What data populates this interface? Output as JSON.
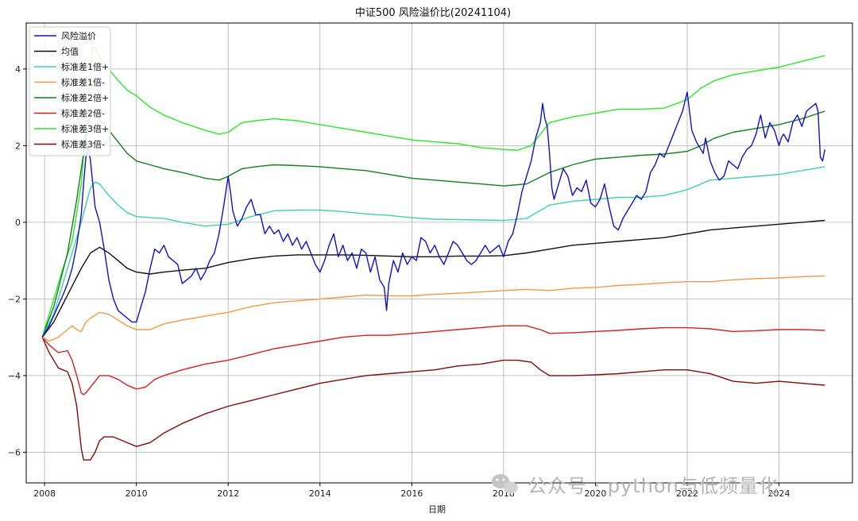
{
  "chart_data": {
    "type": "line",
    "title": "中证500 风险溢价比(20241104)",
    "xlabel": "日期",
    "ylabel": "",
    "xlim": [
      2007.6,
      2025.6
    ],
    "ylim": [
      -6.8,
      5.2
    ],
    "x_ticks": [
      2008,
      2010,
      2012,
      2014,
      2016,
      2018,
      2020,
      2022,
      2024
    ],
    "x_tick_labels": [
      "2008",
      "2010",
      "2012",
      "2014",
      "2016",
      "2018",
      "2020",
      "2022",
      "2024"
    ],
    "y_ticks": [
      -6,
      -4,
      -2,
      0,
      2,
      4
    ],
    "y_tick_labels": [
      "−6",
      "−4",
      "−2",
      "0",
      "2",
      "4"
    ],
    "grid": true,
    "legend_position": "top-left",
    "series": [
      {
        "name": "风险溢价",
        "color": "#1010c8",
        "width": 1.4,
        "x": [
          2007.95,
          2008.1,
          2008.25,
          2008.4,
          2008.5,
          2008.6,
          2008.7,
          2008.8,
          2008.85,
          2008.9,
          2008.95,
          2009.0,
          2009.05,
          2009.1,
          2009.2,
          2009.3,
          2009.4,
          2009.5,
          2009.6,
          2009.7,
          2009.8,
          2009.9,
          2010.0,
          2010.1,
          2010.2,
          2010.3,
          2010.4,
          2010.5,
          2010.6,
          2010.7,
          2010.8,
          2010.9,
          2011.0,
          2011.1,
          2011.2,
          2011.3,
          2011.4,
          2011.5,
          2011.6,
          2011.7,
          2011.8,
          2011.9,
          2012.0,
          2012.05,
          2012.1,
          2012.2,
          2012.3,
          2012.4,
          2012.5,
          2012.6,
          2012.7,
          2012.8,
          2012.9,
          2013.0,
          2013.1,
          2013.2,
          2013.3,
          2013.4,
          2013.5,
          2013.6,
          2013.7,
          2013.8,
          2013.9,
          2014.0,
          2014.1,
          2014.2,
          2014.3,
          2014.4,
          2014.5,
          2014.6,
          2014.7,
          2014.8,
          2014.9,
          2015.0,
          2015.1,
          2015.2,
          2015.3,
          2015.4,
          2015.45,
          2015.5,
          2015.6,
          2015.7,
          2015.8,
          2015.9,
          2016.0,
          2016.1,
          2016.2,
          2016.3,
          2016.4,
          2016.5,
          2016.6,
          2016.7,
          2016.8,
          2016.9,
          2017.0,
          2017.1,
          2017.2,
          2017.3,
          2017.4,
          2017.5,
          2017.6,
          2017.7,
          2017.8,
          2017.9,
          2018.0,
          2018.1,
          2018.2,
          2018.3,
          2018.4,
          2018.5,
          2018.6,
          2018.7,
          2018.8,
          2018.85,
          2018.9,
          2018.95,
          2019.0,
          2019.05,
          2019.1,
          2019.2,
          2019.3,
          2019.4,
          2019.5,
          2019.6,
          2019.7,
          2019.8,
          2019.9,
          2020.0,
          2020.1,
          2020.2,
          2020.3,
          2020.4,
          2020.5,
          2020.6,
          2020.7,
          2020.8,
          2020.9,
          2021.0,
          2021.1,
          2021.2,
          2021.3,
          2021.4,
          2021.5,
          2021.6,
          2021.7,
          2021.8,
          2021.9,
          2022.0,
          2022.1,
          2022.2,
          2022.3,
          2022.35,
          2022.4,
          2022.5,
          2022.6,
          2022.7,
          2022.8,
          2022.9,
          2023.0,
          2023.1,
          2023.2,
          2023.3,
          2023.4,
          2023.5,
          2023.6,
          2023.7,
          2023.8,
          2023.9,
          2024.0,
          2024.05,
          2024.1,
          2024.2,
          2024.3,
          2024.4,
          2024.5,
          2024.6,
          2024.7,
          2024.8,
          2024.85,
          2024.9,
          2024.95,
          2025.0
        ],
        "y": [
          -3.0,
          -2.7,
          -2.3,
          -1.9,
          -1.6,
          -1.2,
          -0.6,
          0.2,
          1.0,
          1.7,
          2.0,
          1.6,
          1.0,
          0.4,
          0.0,
          -0.7,
          -1.5,
          -2.0,
          -2.3,
          -2.4,
          -2.5,
          -2.6,
          -2.6,
          -2.2,
          -1.8,
          -1.2,
          -0.7,
          -0.8,
          -0.6,
          -0.9,
          -1.0,
          -1.1,
          -1.6,
          -1.5,
          -1.4,
          -1.2,
          -1.5,
          -1.3,
          -1.0,
          -0.8,
          -0.3,
          0.4,
          1.2,
          0.8,
          0.3,
          -0.1,
          0.1,
          0.4,
          0.6,
          0.2,
          0.2,
          -0.3,
          -0.1,
          -0.3,
          -0.2,
          -0.5,
          -0.3,
          -0.6,
          -0.4,
          -0.7,
          -0.5,
          -0.8,
          -1.1,
          -1.3,
          -1.0,
          -0.6,
          -0.3,
          -0.9,
          -0.6,
          -1.0,
          -0.8,
          -1.2,
          -0.7,
          -0.8,
          -1.3,
          -0.9,
          -1.5,
          -1.7,
          -2.3,
          -1.6,
          -1.0,
          -1.3,
          -0.8,
          -1.1,
          -0.9,
          -1.0,
          -0.4,
          -0.5,
          -0.8,
          -0.6,
          -0.9,
          -1.1,
          -0.8,
          -0.5,
          -0.6,
          -0.8,
          -1.0,
          -1.1,
          -1.0,
          -0.8,
          -0.6,
          -0.8,
          -0.7,
          -0.6,
          -0.9,
          -0.5,
          -0.3,
          0.2,
          0.8,
          1.2,
          1.6,
          2.2,
          2.6,
          3.1,
          2.7,
          2.5,
          1.8,
          0.9,
          0.6,
          1.0,
          1.4,
          1.2,
          0.7,
          0.9,
          0.8,
          1.1,
          0.5,
          0.4,
          0.6,
          1.0,
          0.4,
          -0.1,
          -0.2,
          0.1,
          0.3,
          0.5,
          0.7,
          0.6,
          0.8,
          1.3,
          1.5,
          1.8,
          1.7,
          2.0,
          2.3,
          2.6,
          2.9,
          3.4,
          2.4,
          2.1,
          1.9,
          1.8,
          2.2,
          1.6,
          1.3,
          1.1,
          1.2,
          1.6,
          1.5,
          1.4,
          1.7,
          1.9,
          2.0,
          2.3,
          2.8,
          2.2,
          2.6,
          2.4,
          2.0,
          2.2,
          2.3,
          2.1,
          2.6,
          2.8,
          2.5,
          2.9,
          3.0,
          3.1,
          2.9,
          1.7,
          1.6,
          1.9
        ]
      },
      {
        "name": "均值",
        "color": "#111111",
        "width": 1.4,
        "x": [
          2007.95,
          2008.2,
          2008.5,
          2008.8,
          2009.0,
          2009.2,
          2009.4,
          2009.6,
          2009.8,
          2010.0,
          2010.3,
          2010.6,
          2011.0,
          2011.5,
          2012.0,
          2012.5,
          2013.0,
          2013.5,
          2014.0,
          2014.5,
          2015.0,
          2015.5,
          2016.0,
          2016.5,
          2017.0,
          2017.5,
          2018.0,
          2018.5,
          2019.0,
          2019.5,
          2020.0,
          2020.5,
          2021.0,
          2021.5,
          2022.0,
          2022.5,
          2023.0,
          2023.5,
          2024.0,
          2024.5,
          2025.0
        ],
        "y": [
          -3.0,
          -2.6,
          -1.9,
          -1.2,
          -0.8,
          -0.65,
          -0.8,
          -1.0,
          -1.2,
          -1.3,
          -1.35,
          -1.3,
          -1.25,
          -1.2,
          -1.05,
          -0.95,
          -0.88,
          -0.85,
          -0.85,
          -0.85,
          -0.86,
          -0.88,
          -0.9,
          -0.9,
          -0.88,
          -0.88,
          -0.87,
          -0.8,
          -0.7,
          -0.6,
          -0.55,
          -0.5,
          -0.45,
          -0.4,
          -0.3,
          -0.2,
          -0.15,
          -0.1,
          -0.05,
          0.0,
          0.05
        ]
      },
      {
        "name": "标准差1倍+",
        "color": "#3fd0b0",
        "width": 1.4,
        "x": [
          2007.95,
          2008.2,
          2008.5,
          2008.8,
          2009.0,
          2009.1,
          2009.2,
          2009.4,
          2009.6,
          2009.8,
          2010.0,
          2010.3,
          2010.6,
          2011.0,
          2011.5,
          2012.0,
          2012.5,
          2013.0,
          2013.5,
          2014.0,
          2014.5,
          2015.0,
          2015.5,
          2016.0,
          2016.5,
          2017.0,
          2017.5,
          2018.0,
          2018.5,
          2019.0,
          2019.5,
          2020.0,
          2020.5,
          2021.0,
          2021.5,
          2022.0,
          2022.5,
          2023.0,
          2023.5,
          2024.0,
          2024.5,
          2025.0
        ],
        "y": [
          -3.0,
          -2.4,
          -1.2,
          0.0,
          0.9,
          1.05,
          1.0,
          0.7,
          0.45,
          0.25,
          0.15,
          0.12,
          0.1,
          0.0,
          -0.1,
          -0.05,
          0.15,
          0.3,
          0.32,
          0.32,
          0.28,
          0.22,
          0.18,
          0.12,
          0.08,
          0.07,
          0.06,
          0.05,
          0.1,
          0.45,
          0.55,
          0.6,
          0.65,
          0.65,
          0.7,
          0.85,
          1.1,
          1.15,
          1.2,
          1.25,
          1.35,
          1.45
        ]
      },
      {
        "name": "标准差1倍-",
        "color": "#f09a48",
        "width": 1.4,
        "x": [
          2007.95,
          2008.1,
          2008.3,
          2008.5,
          2008.6,
          2008.7,
          2008.8,
          2008.9,
          2009.0,
          2009.2,
          2009.4,
          2009.6,
          2009.8,
          2010.0,
          2010.3,
          2010.6,
          2011.0,
          2011.5,
          2012.0,
          2012.5,
          2013.0,
          2013.5,
          2014.0,
          2014.5,
          2015.0,
          2015.5,
          2016.0,
          2016.5,
          2017.0,
          2017.5,
          2018.0,
          2018.5,
          2019.0,
          2019.5,
          2020.0,
          2020.5,
          2021.0,
          2021.5,
          2022.0,
          2022.5,
          2023.0,
          2023.5,
          2024.0,
          2024.5,
          2025.0
        ],
        "y": [
          -3.0,
          -3.1,
          -3.0,
          -2.8,
          -2.7,
          -2.8,
          -2.85,
          -2.6,
          -2.5,
          -2.35,
          -2.4,
          -2.55,
          -2.7,
          -2.8,
          -2.8,
          -2.65,
          -2.55,
          -2.45,
          -2.35,
          -2.2,
          -2.1,
          -2.05,
          -2.0,
          -1.95,
          -1.9,
          -1.92,
          -1.92,
          -1.88,
          -1.85,
          -1.82,
          -1.78,
          -1.75,
          -1.78,
          -1.72,
          -1.7,
          -1.65,
          -1.62,
          -1.58,
          -1.55,
          -1.55,
          -1.5,
          -1.47,
          -1.45,
          -1.42,
          -1.4
        ]
      },
      {
        "name": "标准差2倍+",
        "color": "#157f1f",
        "width": 1.4,
        "x": [
          2007.95,
          2008.2,
          2008.5,
          2008.7,
          2008.9,
          2009.0,
          2009.1,
          2009.2,
          2009.4,
          2009.6,
          2009.8,
          2010.0,
          2010.3,
          2010.6,
          2011.0,
          2011.5,
          2011.8,
          2012.0,
          2012.3,
          2012.6,
          2013.0,
          2013.5,
          2014.0,
          2014.5,
          2015.0,
          2015.5,
          2016.0,
          2016.5,
          2017.0,
          2017.5,
          2018.0,
          2018.5,
          2019.0,
          2019.5,
          2020.0,
          2020.5,
          2021.0,
          2021.5,
          2022.0,
          2022.3,
          2022.6,
          2023.0,
          2023.5,
          2024.0,
          2024.5,
          2025.0
        ],
        "y": [
          -3.0,
          -2.2,
          -0.8,
          0.6,
          2.2,
          2.8,
          2.85,
          2.7,
          2.4,
          2.1,
          1.8,
          1.6,
          1.5,
          1.4,
          1.3,
          1.15,
          1.1,
          1.2,
          1.4,
          1.45,
          1.5,
          1.48,
          1.45,
          1.4,
          1.35,
          1.25,
          1.15,
          1.1,
          1.05,
          1.0,
          0.95,
          1.0,
          1.3,
          1.5,
          1.65,
          1.7,
          1.75,
          1.78,
          1.85,
          2.0,
          2.2,
          2.35,
          2.45,
          2.55,
          2.7,
          2.9
        ]
      },
      {
        "name": "标准差2倍-",
        "color": "#d42020",
        "width": 1.4,
        "x": [
          2007.95,
          2008.1,
          2008.3,
          2008.5,
          2008.6,
          2008.7,
          2008.8,
          2008.85,
          2008.9,
          2009.0,
          2009.2,
          2009.4,
          2009.6,
          2009.8,
          2010.0,
          2010.2,
          2010.4,
          2010.6,
          2011.0,
          2011.5,
          2012.0,
          2012.5,
          2013.0,
          2013.5,
          2014.0,
          2014.5,
          2015.0,
          2015.5,
          2016.0,
          2016.5,
          2017.0,
          2017.5,
          2018.0,
          2018.5,
          2018.8,
          2019.0,
          2019.5,
          2020.0,
          2020.5,
          2021.0,
          2021.5,
          2022.0,
          2022.5,
          2023.0,
          2023.5,
          2024.0,
          2024.5,
          2025.0
        ],
        "y": [
          -3.0,
          -3.2,
          -3.4,
          -3.35,
          -3.6,
          -4.0,
          -4.45,
          -4.5,
          -4.45,
          -4.3,
          -4.0,
          -4.0,
          -4.1,
          -4.25,
          -4.35,
          -4.3,
          -4.1,
          -4.0,
          -3.85,
          -3.7,
          -3.6,
          -3.45,
          -3.3,
          -3.2,
          -3.1,
          -3.0,
          -2.95,
          -2.95,
          -2.9,
          -2.85,
          -2.8,
          -2.75,
          -2.7,
          -2.7,
          -2.8,
          -2.9,
          -2.88,
          -2.85,
          -2.82,
          -2.78,
          -2.75,
          -2.75,
          -2.78,
          -2.85,
          -2.83,
          -2.8,
          -2.8,
          -2.82
        ]
      },
      {
        "name": "标准差3倍+",
        "color": "#2ee52e",
        "width": 1.4,
        "x": [
          2007.95,
          2008.2,
          2008.4,
          2008.6,
          2008.8,
          2008.9,
          2009.0,
          2009.05,
          2009.1,
          2009.2,
          2009.4,
          2009.6,
          2009.8,
          2010.0,
          2010.3,
          2010.6,
          2011.0,
          2011.5,
          2011.8,
          2012.0,
          2012.3,
          2012.6,
          2013.0,
          2013.5,
          2014.0,
          2014.5,
          2015.0,
          2015.5,
          2016.0,
          2016.5,
          2017.0,
          2017.5,
          2018.0,
          2018.3,
          2018.6,
          2019.0,
          2019.5,
          2020.0,
          2020.5,
          2021.0,
          2021.5,
          2022.0,
          2022.3,
          2022.6,
          2023.0,
          2023.5,
          2024.0,
          2024.5,
          2025.0
        ],
        "y": [
          -3.0,
          -2.0,
          -1.2,
          -0.5,
          1.0,
          2.5,
          3.9,
          4.6,
          4.55,
          4.3,
          4.0,
          3.7,
          3.45,
          3.3,
          3.0,
          2.8,
          2.6,
          2.4,
          2.3,
          2.35,
          2.6,
          2.65,
          2.7,
          2.65,
          2.55,
          2.45,
          2.35,
          2.25,
          2.15,
          2.1,
          2.05,
          1.95,
          1.9,
          1.88,
          2.0,
          2.6,
          2.75,
          2.85,
          2.95,
          2.95,
          2.98,
          3.2,
          3.5,
          3.7,
          3.85,
          3.95,
          4.05,
          4.2,
          4.35
        ]
      },
      {
        "name": "标准差3倍-",
        "color": "#7b0d0d",
        "width": 1.4,
        "x": [
          2007.95,
          2008.1,
          2008.3,
          2008.5,
          2008.6,
          2008.7,
          2008.8,
          2008.85,
          2008.9,
          2009.0,
          2009.1,
          2009.2,
          2009.3,
          2009.5,
          2009.7,
          2010.0,
          2010.3,
          2010.6,
          2011.0,
          2011.5,
          2012.0,
          2012.5,
          2013.0,
          2013.5,
          2014.0,
          2014.5,
          2015.0,
          2015.5,
          2016.0,
          2016.5,
          2017.0,
          2017.5,
          2018.0,
          2018.3,
          2018.6,
          2018.8,
          2019.0,
          2019.5,
          2020.0,
          2020.5,
          2021.0,
          2021.5,
          2022.0,
          2022.5,
          2023.0,
          2023.5,
          2024.0,
          2024.5,
          2025.0
        ],
        "y": [
          -3.0,
          -3.4,
          -3.8,
          -3.9,
          -4.2,
          -4.8,
          -5.9,
          -6.2,
          -6.2,
          -6.2,
          -6.0,
          -5.7,
          -5.6,
          -5.6,
          -5.7,
          -5.85,
          -5.75,
          -5.5,
          -5.25,
          -5.0,
          -4.8,
          -4.65,
          -4.5,
          -4.35,
          -4.2,
          -4.1,
          -4.0,
          -3.95,
          -3.9,
          -3.85,
          -3.75,
          -3.7,
          -3.6,
          -3.6,
          -3.65,
          -3.85,
          -4.0,
          -4.0,
          -3.98,
          -3.95,
          -3.9,
          -3.85,
          -3.85,
          -3.95,
          -4.15,
          -4.2,
          -4.15,
          -4.2,
          -4.25
        ]
      }
    ]
  },
  "watermark": {
    "text": "公众号 · python与低频量化",
    "icon": "wechat-icon"
  }
}
